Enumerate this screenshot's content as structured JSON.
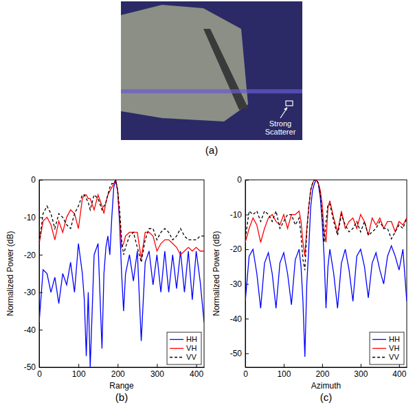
{
  "chart_data": [
    {
      "type": "image",
      "label": "(a)",
      "annotation": "Strong Scatterer"
    },
    {
      "type": "line",
      "label": "(b)",
      "xlabel": "Range",
      "ylabel": "Normalized Power (dB)",
      "xlim": [
        0,
        420
      ],
      "xticks": [
        0,
        100,
        200,
        300,
        400
      ],
      "ylim": [
        -50,
        0
      ],
      "yticks": [
        -50,
        -40,
        -30,
        -20,
        -10,
        0
      ],
      "legend": "lower right",
      "x": [
        0,
        10,
        20,
        30,
        40,
        50,
        60,
        70,
        80,
        90,
        100,
        110,
        115,
        120,
        125,
        130,
        140,
        150,
        160,
        165,
        170,
        175,
        180,
        185,
        190,
        195,
        200,
        205,
        210,
        215,
        220,
        230,
        240,
        250,
        260,
        270,
        280,
        290,
        300,
        310,
        320,
        330,
        340,
        350,
        360,
        370,
        380,
        390,
        400,
        410,
        420
      ],
      "series": [
        {
          "name": "HH",
          "color": "#0000ff",
          "line_style": "solid",
          "values": [
            -38,
            -24,
            -25,
            -30,
            -26,
            -33,
            -25,
            -28,
            -22,
            -30,
            -17,
            -25,
            -32,
            -47,
            -30,
            -50,
            -20,
            -17,
            -45,
            -25,
            -18,
            -15,
            -20,
            -10,
            -2,
            0,
            -3,
            -12,
            -25,
            -35,
            -25,
            -20,
            -27,
            -19,
            -43,
            -22,
            -19,
            -28,
            -20,
            -30,
            -19,
            -30,
            -20,
            -29,
            -19,
            -30,
            -19,
            -32,
            -19,
            -27,
            -38
          ]
        },
        {
          "name": "VH",
          "color": "#ff0000",
          "line_style": "solid",
          "values": [
            -17,
            -11,
            -10,
            -12,
            -16,
            -11,
            -14,
            -10,
            -8,
            -9,
            -13,
            -5,
            -4,
            -4,
            -5,
            -5,
            -8,
            -4,
            -7,
            -9,
            -6,
            -4,
            -3,
            -2,
            -1,
            0,
            -3,
            -10,
            -18,
            -17,
            -15,
            -14,
            -14,
            -14,
            -21,
            -14,
            -14,
            -15,
            -19,
            -17,
            -16,
            -16,
            -17,
            -18,
            -20,
            -19,
            -18,
            -19,
            -18,
            -19,
            -19
          ]
        },
        {
          "name": "VV",
          "color": "#000000",
          "line_style": "dashed",
          "values": [
            -17,
            -9,
            -7,
            -9,
            -13,
            -9,
            -10,
            -12,
            -13,
            -9,
            -7,
            -4,
            -4,
            -5,
            -6,
            -8,
            -4,
            -5,
            -8,
            -7,
            -6,
            -4,
            -2,
            -1,
            -1,
            0,
            -3,
            -8,
            -16,
            -20,
            -18,
            -15,
            -14,
            -18,
            -22,
            -16,
            -13,
            -13,
            -16,
            -14,
            -13,
            -14,
            -16,
            -15,
            -13,
            -15,
            -16,
            -16,
            -16,
            -15,
            -15
          ]
        }
      ]
    },
    {
      "type": "line",
      "label": "(c)",
      "xlabel": "Azimuth",
      "ylabel": "Normalized Power (dB)",
      "xlim": [
        0,
        420
      ],
      "xticks": [
        0,
        100,
        200,
        300,
        400
      ],
      "ylim": [
        -54,
        0
      ],
      "yticks": [
        -50,
        -40,
        -30,
        -20,
        -10,
        0
      ],
      "legend": "lower right",
      "x": [
        0,
        10,
        20,
        30,
        40,
        50,
        60,
        70,
        80,
        90,
        100,
        110,
        120,
        130,
        140,
        145,
        150,
        155,
        160,
        165,
        170,
        175,
        180,
        185,
        190,
        195,
        200,
        205,
        210,
        215,
        220,
        230,
        240,
        250,
        260,
        270,
        280,
        290,
        300,
        310,
        320,
        330,
        340,
        350,
        360,
        370,
        380,
        390,
        400,
        410,
        420
      ],
      "series": [
        {
          "name": "HH",
          "color": "#0000ff",
          "line_style": "solid",
          "values": [
            -35,
            -22,
            -20,
            -27,
            -37,
            -24,
            -21,
            -27,
            -37,
            -24,
            -21,
            -27,
            -36,
            -23,
            -20,
            -25,
            -35,
            -51,
            -30,
            -20,
            -8,
            -3,
            -1,
            0,
            -1,
            -5,
            -12,
            -22,
            -37,
            -25,
            -20,
            -27,
            -37,
            -24,
            -20,
            -26,
            -35,
            -22,
            -20,
            -25,
            -34,
            -24,
            -21,
            -26,
            -30,
            -22,
            -19,
            -22,
            -26,
            -20,
            -35
          ]
        },
        {
          "name": "VH",
          "color": "#ff0000",
          "line_style": "solid",
          "values": [
            -18,
            -14,
            -11,
            -13,
            -18,
            -14,
            -11,
            -10,
            -12,
            -13,
            -10,
            -14,
            -10,
            -10,
            -9,
            -12,
            -18,
            -22,
            -14,
            -8,
            -3,
            -1,
            0,
            0,
            -1,
            -3,
            -7,
            -15,
            -18,
            -8,
            -6,
            -11,
            -15,
            -9,
            -14,
            -12,
            -11,
            -14,
            -10,
            -12,
            -16,
            -11,
            -13,
            -11,
            -14,
            -12,
            -12,
            -15,
            -12,
            -13,
            -11
          ]
        },
        {
          "name": "VV",
          "color": "#000000",
          "line_style": "dashed",
          "values": [
            -17,
            -9,
            -10,
            -9,
            -12,
            -9,
            -10,
            -12,
            -9,
            -14,
            -12,
            -10,
            -10,
            -13,
            -11,
            -16,
            -23,
            -26,
            -15,
            -8,
            -3,
            -1,
            0,
            0,
            -1,
            -4,
            -10,
            -18,
            -12,
            -7,
            -7,
            -12,
            -16,
            -10,
            -13,
            -15,
            -14,
            -12,
            -15,
            -12,
            -16,
            -15,
            -14,
            -12,
            -14,
            -14,
            -17,
            -15,
            -13,
            -14,
            -11
          ]
        }
      ]
    }
  ]
}
